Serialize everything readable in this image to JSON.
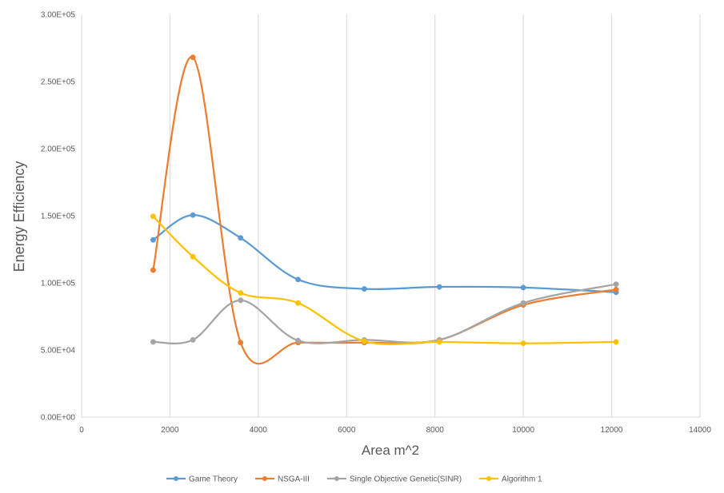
{
  "chart_data": {
    "type": "line",
    "xlabel": "Area m^2",
    "ylabel": "Energy Efficiency",
    "xlim": [
      0,
      14000
    ],
    "ylim": [
      0,
      300000
    ],
    "x_ticks": [
      0,
      2000,
      4000,
      6000,
      8000,
      10000,
      12000,
      14000
    ],
    "x_tick_labels": [
      "0",
      "2000",
      "4000",
      "6000",
      "8000",
      "10000",
      "12000",
      "14000"
    ],
    "y_ticks": [
      0,
      50000,
      100000,
      150000,
      200000,
      250000,
      300000
    ],
    "y_tick_labels": [
      "0.00E+00",
      "5.00E+04",
      "1.00E+05",
      "1.50E+05",
      "2.00E+05",
      "2.50E+05",
      "3.00E+05"
    ],
    "grid": "vertical",
    "smooth": true,
    "legend_position": "bottom",
    "x": [
      1620,
      2520,
      3600,
      4900,
      6400,
      8100,
      10000,
      12100
    ],
    "series": [
      {
        "name": "Game Theory",
        "color": "#5b9bd5",
        "values": [
          132000,
          150500,
          133500,
          102500,
          95500,
          97000,
          96500,
          93000
        ]
      },
      {
        "name": "NSGA-III",
        "color": "#ed7d31",
        "values": [
          109500,
          268000,
          55500,
          55500,
          55500,
          57500,
          83500,
          95000
        ]
      },
      {
        "name": "Single Objective Genetic(SINR)",
        "color": "#a5a5a5",
        "values": [
          56000,
          57500,
          87000,
          57000,
          57500,
          57500,
          85000,
          99000
        ]
      },
      {
        "name": "Algorithm 1",
        "color": "#ffc000",
        "values": [
          149500,
          119500,
          92500,
          85000,
          56500,
          56000,
          55000,
          56000
        ]
      }
    ]
  }
}
